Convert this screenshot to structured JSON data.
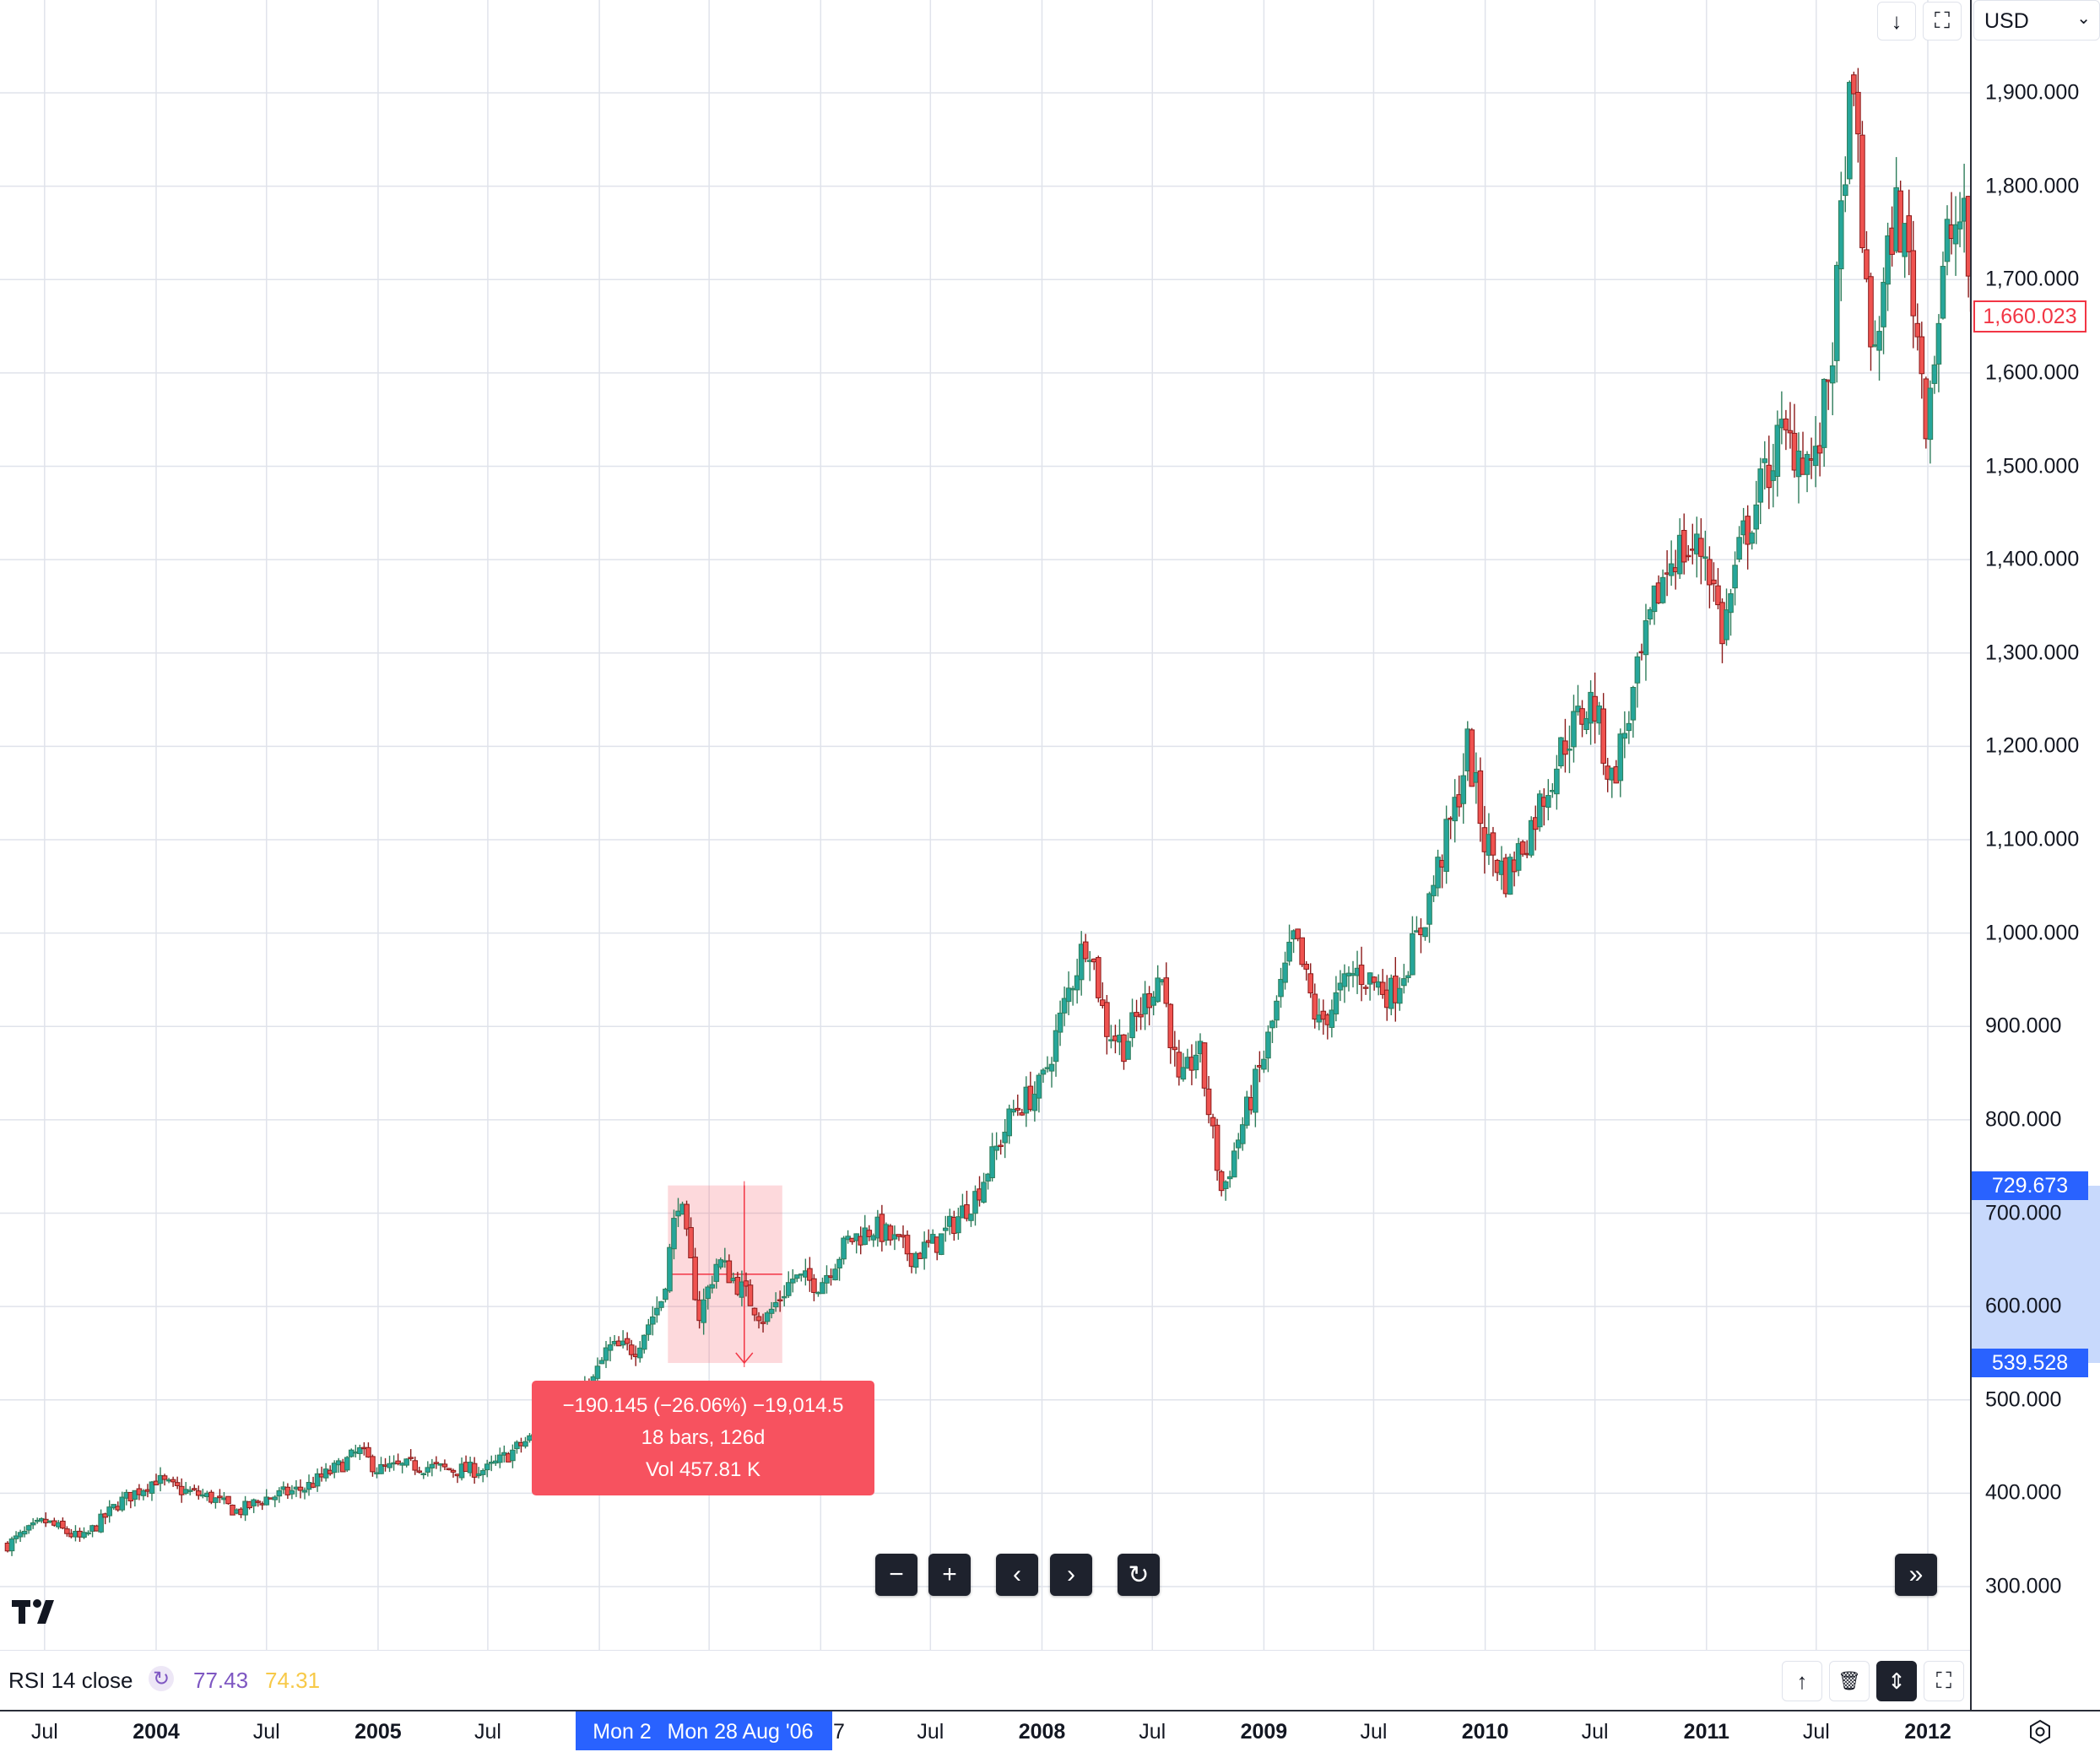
{
  "currency_selector": {
    "value": "USD",
    "chevron_icon": "chevron-down-icon"
  },
  "top_buttons": [
    {
      "name": "scroll-down-button",
      "icon": "arrow-down-icon",
      "glyph": "↓"
    },
    {
      "name": "maximize-button",
      "icon": "maximize-icon",
      "glyph": "⛶"
    }
  ],
  "price_axis": {
    "ticks": [
      "1,900.000",
      "1,800.000",
      "1,700.000",
      "1,600.000",
      "1,500.000",
      "1,400.000",
      "1,300.000",
      "1,200.000",
      "1,100.000",
      "1,000.000",
      "900.000",
      "800.000",
      "700.000",
      "600.000",
      "500.000",
      "400.000",
      "300.000"
    ],
    "current_price": "1,660.023",
    "range_high": "729.673",
    "range_low": "539.528"
  },
  "time_axis": {
    "labels": [
      "Jul",
      "2004",
      "Jul",
      "2005",
      "Jul",
      "Jul",
      "2008",
      "Jul",
      "2009",
      "Jul",
      "2010",
      "Jul",
      "2011",
      "Jul",
      "2012"
    ],
    "partial_right": "7",
    "range_start": "Mon 2",
    "crosshair_date": "Mon 28 Aug '06",
    "settings_icon": "settings-icon"
  },
  "measurement": {
    "change": "−190.145 (−26.06%) −19,014.5",
    "bars": "18 bars, 126d",
    "volume": "Vol 457.81 K"
  },
  "nav_controls": [
    {
      "name": "zoom-out-button",
      "icon": "minus-icon",
      "glyph": "−"
    },
    {
      "name": "zoom-in-button",
      "icon": "plus-icon",
      "glyph": "+"
    },
    {
      "name": "scroll-left-button",
      "icon": "chevron-left-icon",
      "glyph": "‹"
    },
    {
      "name": "scroll-right-button",
      "icon": "chevron-right-icon",
      "glyph": "›"
    },
    {
      "name": "reset-chart-button",
      "icon": "reset-icon",
      "glyph": "↻"
    },
    {
      "name": "scroll-to-realtime-button",
      "icon": "double-chevron-right-icon",
      "glyph": "»"
    }
  ],
  "rsi": {
    "label": "RSI 14 close",
    "value1": "77.43",
    "value2": "74.31",
    "icon": "loading-spinner-icon",
    "buttons": [
      {
        "name": "move-pane-up-button",
        "icon": "arrow-up-icon",
        "glyph": "↑"
      },
      {
        "name": "delete-pane-button",
        "icon": "trash-icon",
        "glyph": "🗑"
      },
      {
        "name": "collapse-pane-button",
        "icon": "collapse-icon",
        "glyph": "⇕"
      },
      {
        "name": "maximize-pane-button",
        "icon": "maximize-icon",
        "glyph": "⛶"
      }
    ]
  },
  "logo": {
    "text": "TV",
    "icon": "tradingview-logo-icon"
  },
  "colors": {
    "up": "#26a69a",
    "up_dark": "#2e7d5b",
    "down": "#ef5350",
    "down_dark": "#8b1a1a",
    "accent": "#2962ff",
    "measure": "#f7525f",
    "price_tag": "#f23645"
  },
  "chart_data": {
    "type": "candlestick",
    "ylim": [
      210,
      1960
    ],
    "grid": true,
    "weekly_close_path": [
      [
        "2003-05-01",
        345
      ],
      [
        "2003-07-01",
        370
      ],
      [
        "2003-09-01",
        350
      ],
      [
        "2003-11-01",
        390
      ],
      [
        "2004-01-01",
        415
      ],
      [
        "2004-02-01",
        405
      ],
      [
        "2004-04-01",
        395
      ],
      [
        "2004-05-15",
        380
      ],
      [
        "2004-07-01",
        395
      ],
      [
        "2004-09-01",
        405
      ],
      [
        "2004-11-01",
        430
      ],
      [
        "2004-12-01",
        445
      ],
      [
        "2005-01-01",
        425
      ],
      [
        "2005-03-01",
        430
      ],
      [
        "2005-05-01",
        425
      ],
      [
        "2005-07-01",
        425
      ],
      [
        "2005-09-01",
        455
      ],
      [
        "2005-11-01",
        480
      ],
      [
        "2005-12-15",
        510
      ],
      [
        "2006-01-15",
        555
      ],
      [
        "2006-03-01",
        555
      ],
      [
        "2006-04-15",
        610
      ],
      [
        "2006-05-12",
        720
      ],
      [
        "2006-06-15",
        590
      ],
      [
        "2006-07-15",
        650
      ],
      [
        "2006-08-28",
        615
      ],
      [
        "2006-10-01",
        585
      ],
      [
        "2006-11-15",
        630
      ],
      [
        "2006-12-31",
        625
      ],
      [
        "2007-02-15",
        670
      ],
      [
        "2007-04-01",
        685
      ],
      [
        "2007-06-01",
        655
      ],
      [
        "2007-07-15",
        670
      ],
      [
        "2007-09-15",
        720
      ],
      [
        "2007-11-15",
        810
      ],
      [
        "2007-12-31",
        835
      ],
      [
        "2008-02-15",
        940
      ],
      [
        "2008-03-17",
        1000
      ],
      [
        "2008-04-15",
        900
      ],
      [
        "2008-05-15",
        880
      ],
      [
        "2008-07-15",
        960
      ],
      [
        "2008-08-15",
        830
      ],
      [
        "2008-09-15",
        880
      ],
      [
        "2008-10-24",
        720
      ],
      [
        "2008-11-15",
        770
      ],
      [
        "2008-12-31",
        865
      ],
      [
        "2009-02-20",
        995
      ],
      [
        "2009-04-01",
        900
      ],
      [
        "2009-06-01",
        960
      ],
      [
        "2009-08-01",
        935
      ],
      [
        "2009-09-15",
        1000
      ],
      [
        "2009-11-15",
        1140
      ],
      [
        "2009-12-03",
        1200
      ],
      [
        "2009-12-31",
        1100
      ],
      [
        "2010-02-05",
        1060
      ],
      [
        "2010-03-15",
        1110
      ],
      [
        "2010-05-15",
        1210
      ],
      [
        "2010-06-28",
        1250
      ],
      [
        "2010-07-28",
        1160
      ],
      [
        "2010-09-01",
        1250
      ],
      [
        "2010-10-15",
        1370
      ],
      [
        "2010-11-09",
        1410
      ],
      [
        "2010-12-31",
        1410
      ],
      [
        "2011-01-28",
        1320
      ],
      [
        "2011-03-01",
        1420
      ],
      [
        "2011-05-01",
        1530
      ],
      [
        "2011-06-01",
        1520
      ],
      [
        "2011-07-01",
        1500
      ],
      [
        "2011-08-01",
        1650
      ],
      [
        "2011-08-22",
        1880
      ],
      [
        "2011-09-06",
        1870
      ],
      [
        "2011-09-26",
        1620
      ],
      [
        "2011-10-15",
        1660
      ],
      [
        "2011-11-08",
        1780
      ],
      [
        "2011-12-01",
        1720
      ],
      [
        "2011-12-29",
        1560
      ],
      [
        "2012-01-20",
        1660
      ],
      [
        "2012-02-01",
        1740
      ],
      [
        "2012-02-28",
        1770
      ],
      [
        "2012-03-15",
        1660
      ]
    ]
  }
}
